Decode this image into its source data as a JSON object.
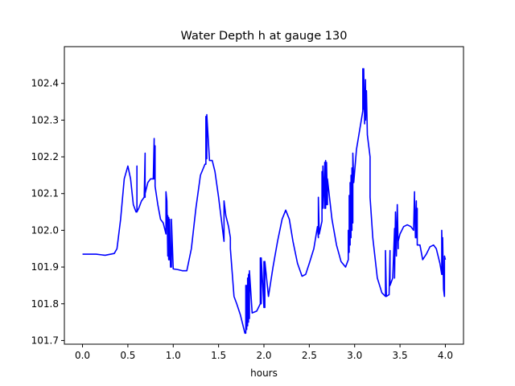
{
  "chart_data": {
    "type": "line",
    "title": "Water Depth h at gauge 130",
    "xlabel": "hours",
    "ylabel": "",
    "xlim": [
      -0.2,
      4.2
    ],
    "ylim": [
      101.69,
      102.5
    ],
    "xticks": [
      0.0,
      0.5,
      1.0,
      1.5,
      2.0,
      2.5,
      3.0,
      3.5,
      4.0
    ],
    "xtick_labels": [
      "0.0",
      "0.5",
      "1.0",
      "1.5",
      "2.0",
      "2.5",
      "3.0",
      "3.5",
      "4.0"
    ],
    "yticks": [
      101.7,
      101.8,
      101.9,
      102.0,
      102.1,
      102.2,
      102.3,
      102.4
    ],
    "ytick_labels": [
      "101.7",
      "101.8",
      "101.9",
      "102.0",
      "102.1",
      "102.2",
      "102.3",
      "102.4"
    ],
    "grid": false,
    "line_color": "#0000ff",
    "series": [
      {
        "x": [
          0.0,
          0.1,
          0.15,
          0.25,
          0.35,
          0.38,
          0.42,
          0.46,
          0.5,
          0.53,
          0.56,
          0.59,
          0.6,
          0.6,
          0.6,
          0.62,
          0.65,
          0.68,
          0.69,
          0.69,
          0.69,
          0.72,
          0.75,
          0.78,
          0.79,
          0.79,
          0.8,
          0.8,
          0.8,
          0.83,
          0.86,
          0.89,
          0.92,
          0.92,
          0.93,
          0.94,
          0.94,
          0.95,
          0.95,
          0.96,
          0.96,
          0.97,
          0.98,
          0.98,
          1.0,
          1.05,
          1.1,
          1.15,
          1.2,
          1.25,
          1.3,
          1.35,
          1.36,
          1.36,
          1.37,
          1.37,
          1.4,
          1.43,
          1.46,
          1.5,
          1.53,
          1.56,
          1.56,
          1.57,
          1.58,
          1.61,
          1.63,
          1.63,
          1.67,
          1.7,
          1.74,
          1.76,
          1.78,
          1.79,
          1.79,
          1.8,
          1.8,
          1.81,
          1.81,
          1.82,
          1.82,
          1.83,
          1.83,
          1.84,
          1.84,
          1.87,
          1.92,
          1.96,
          1.96,
          1.97,
          1.97,
          2.0,
          2.0,
          2.01,
          2.01,
          2.05,
          2.1,
          2.15,
          2.2,
          2.24,
          2.28,
          2.32,
          2.37,
          2.42,
          2.46,
          2.5,
          2.55,
          2.59,
          2.6,
          2.6,
          2.61,
          2.64,
          2.64,
          2.65,
          2.65,
          2.67,
          2.67,
          2.68,
          2.68,
          2.69,
          2.69,
          2.7,
          2.7,
          2.75,
          2.8,
          2.85,
          2.9,
          2.93,
          2.93,
          2.94,
          2.94,
          2.95,
          2.95,
          2.96,
          2.96,
          2.97,
          2.97,
          2.98,
          2.98,
          2.99,
          3.02,
          3.06,
          3.09,
          3.09,
          3.1,
          3.1,
          3.11,
          3.12,
          3.12,
          3.13,
          3.14,
          3.15,
          3.17,
          3.17,
          3.2,
          3.25,
          3.3,
          3.34,
          3.34,
          3.35,
          3.38,
          3.39,
          3.39,
          3.42,
          3.44,
          3.44,
          3.45,
          3.46,
          3.47,
          3.48,
          3.48,
          3.5,
          3.54,
          3.58,
          3.62,
          3.65,
          3.66,
          3.66,
          3.67,
          3.68,
          3.68,
          3.69,
          3.69,
          3.72,
          3.75,
          3.79,
          3.83,
          3.87,
          3.9,
          3.94,
          3.96,
          3.96,
          3.97,
          3.97,
          3.98,
          3.99,
          3.99,
          4.0
        ],
        "y": [
          101.935,
          101.935,
          101.935,
          101.932,
          101.937,
          101.95,
          102.03,
          102.14,
          102.175,
          102.14,
          102.07,
          102.05,
          102.05,
          102.175,
          102.05,
          102.06,
          102.08,
          102.09,
          102.21,
          102.09,
          102.1,
          102.13,
          102.14,
          102.14,
          102.25,
          102.14,
          102.23,
          102.14,
          102.12,
          102.07,
          102.03,
          102.02,
          101.99,
          102.105,
          102.08,
          101.93,
          102.04,
          101.92,
          102.035,
          101.92,
          102.03,
          101.9,
          101.9,
          102.03,
          101.895,
          101.893,
          101.89,
          101.89,
          101.95,
          102.06,
          102.15,
          102.18,
          102.18,
          102.31,
          102.195,
          102.315,
          102.19,
          102.19,
          102.16,
          102.09,
          102.03,
          101.97,
          102.08,
          102.06,
          102.04,
          102.01,
          101.98,
          101.95,
          101.82,
          101.8,
          101.77,
          101.75,
          101.73,
          101.72,
          101.72,
          101.72,
          101.85,
          101.73,
          101.85,
          101.74,
          101.87,
          101.75,
          101.88,
          101.76,
          101.89,
          101.775,
          101.78,
          101.8,
          101.925,
          101.8,
          101.925,
          101.79,
          101.915,
          101.79,
          101.915,
          101.82,
          101.9,
          101.97,
          102.03,
          102.055,
          102.03,
          101.97,
          101.91,
          101.875,
          101.88,
          101.91,
          101.95,
          102.01,
          101.98,
          102.09,
          101.99,
          102.025,
          102.16,
          102.06,
          102.175,
          102.06,
          102.185,
          102.06,
          102.19,
          102.07,
          102.185,
          102.07,
          102.14,
          102.03,
          101.96,
          101.915,
          101.9,
          101.92,
          102.0,
          101.94,
          102.095,
          101.96,
          102.13,
          101.98,
          102.15,
          102.0,
          102.17,
          102.02,
          102.21,
          102.13,
          102.22,
          102.28,
          102.325,
          102.44,
          102.33,
          102.44,
          102.29,
          102.41,
          102.3,
          102.38,
          102.26,
          102.24,
          102.2,
          102.09,
          101.98,
          101.87,
          101.83,
          101.82,
          101.945,
          101.82,
          101.825,
          101.945,
          101.85,
          101.87,
          102.005,
          101.87,
          102.05,
          101.93,
          102.07,
          101.95,
          101.97,
          101.99,
          102.01,
          102.015,
          102.01,
          102.0,
          102.105,
          102.09,
          101.98,
          102.08,
          101.98,
          102.06,
          101.96,
          101.96,
          101.92,
          101.935,
          101.955,
          101.96,
          101.95,
          101.91,
          101.88,
          102.0,
          101.88,
          101.98,
          101.84,
          101.82,
          101.93,
          101.92
        ]
      }
    ]
  }
}
